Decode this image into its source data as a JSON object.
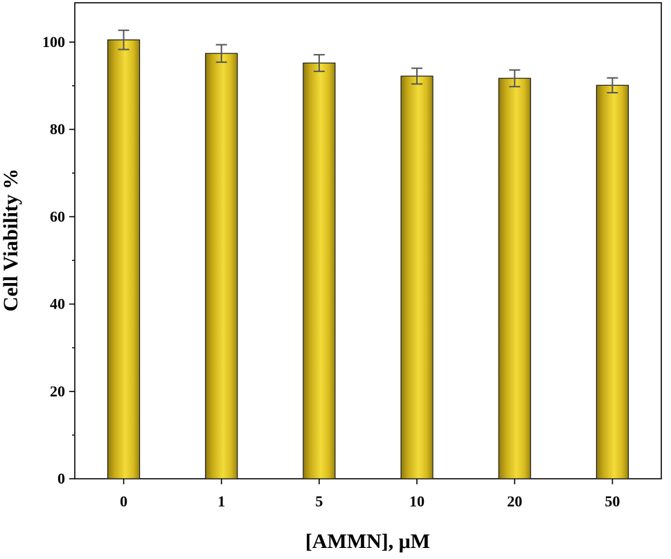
{
  "chart_data": {
    "type": "bar",
    "title": "",
    "xlabel": "[AMMN], μM",
    "ylabel": "Cell Viability %",
    "categories": [
      "0",
      "1",
      "5",
      "10",
      "20",
      "50"
    ],
    "values": [
      100.5,
      97.4,
      95.2,
      92.2,
      91.7,
      90.1
    ],
    "errors": [
      2.2,
      2.0,
      1.9,
      1.8,
      1.9,
      1.7
    ],
    "ylim": [
      0,
      109
    ],
    "yticks": [
      0,
      20,
      40,
      60,
      80,
      100
    ],
    "ytick_labels": [
      "0",
      "20",
      "40",
      "60",
      "80",
      "100"
    ],
    "grid": false,
    "bar_color": "#e5c623",
    "bar_edge_color": "#1a1a1a",
    "error_bar_color": "#555555"
  }
}
